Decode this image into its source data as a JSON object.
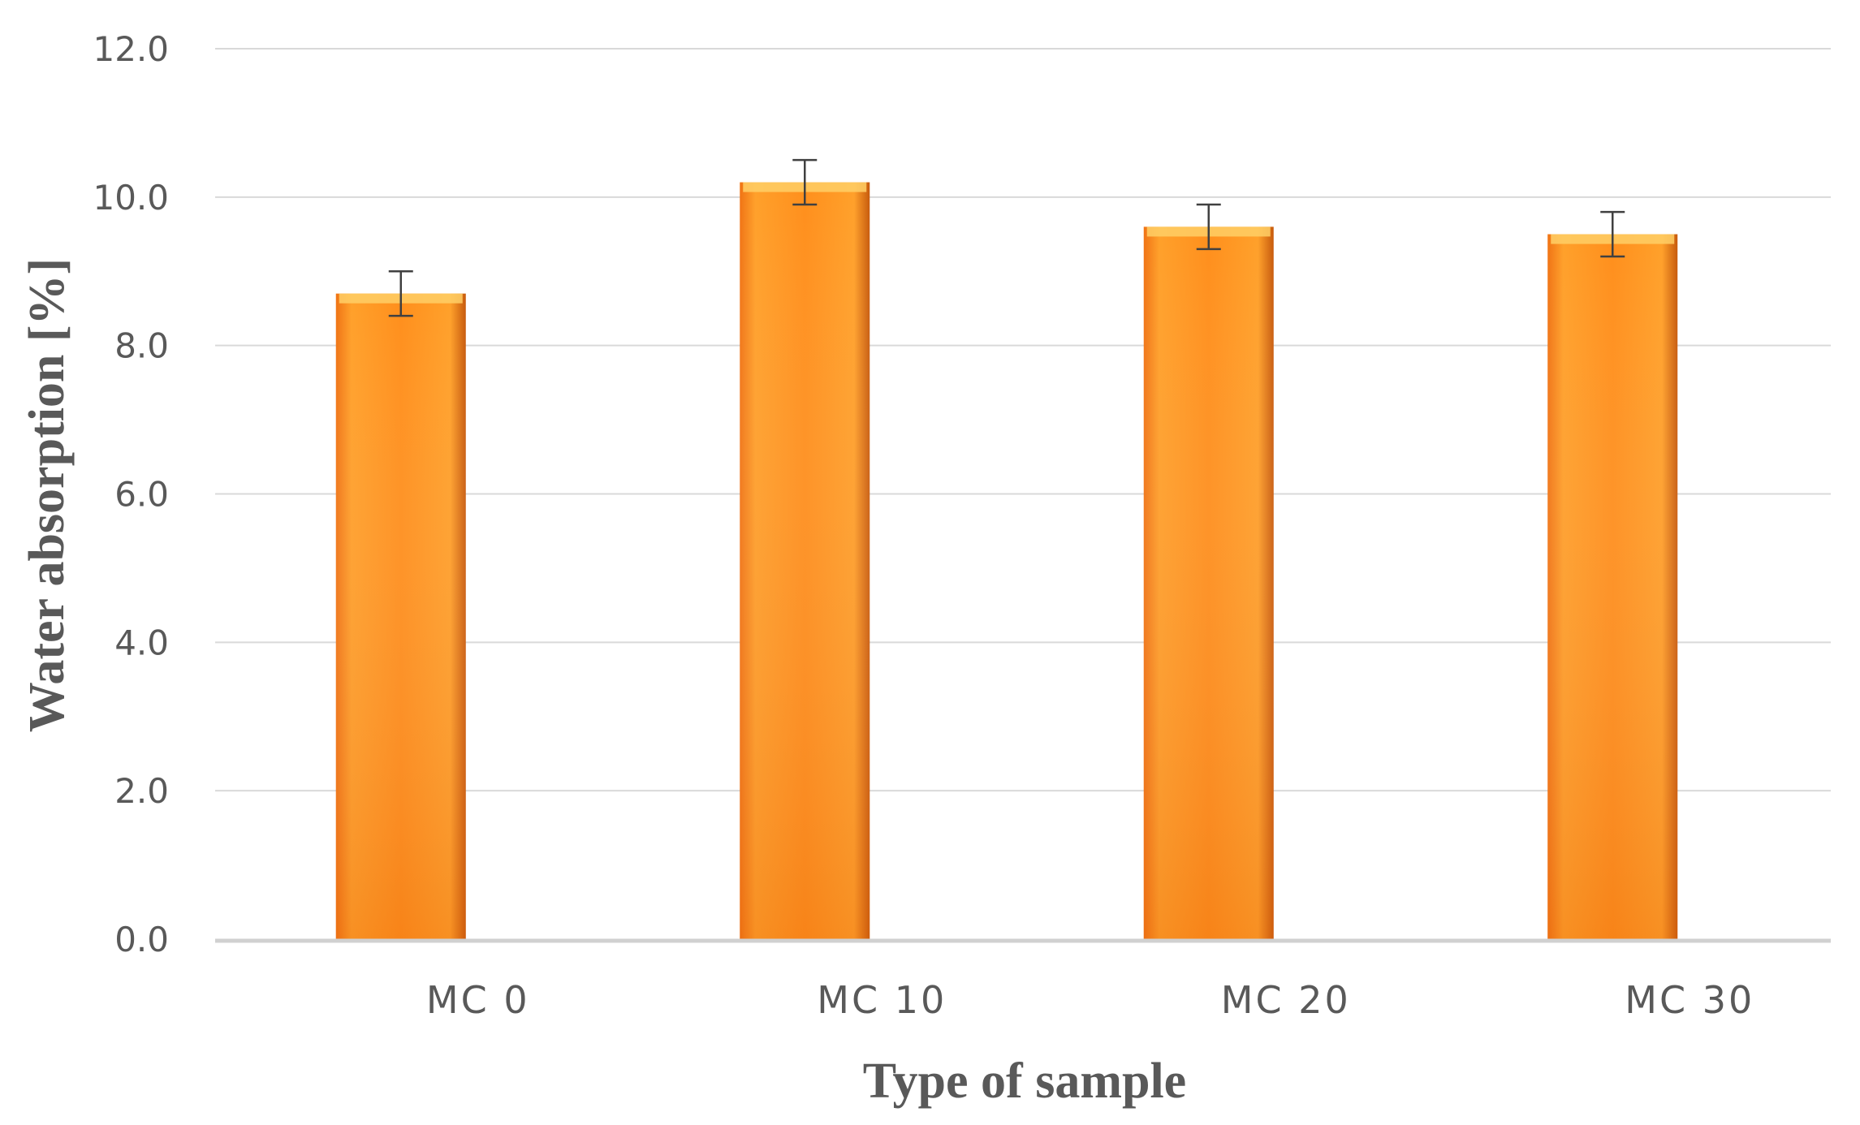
{
  "chart_data": {
    "type": "bar",
    "title": "",
    "xlabel": "Type of sample",
    "ylabel": "Water absorption [%]",
    "categories": [
      "MC 0",
      "MC 10",
      "MC 20",
      "MC 30"
    ],
    "values": [
      8.7,
      10.2,
      9.6,
      9.5
    ],
    "error": [
      0.3,
      0.3,
      0.3,
      0.3
    ],
    "ylim": [
      0.0,
      12.0
    ],
    "yticks": [
      "0.0",
      "2.0",
      "4.0",
      "6.0",
      "8.0",
      "10.0",
      "12.0"
    ],
    "grid": true,
    "legend": "none",
    "colors": {
      "bar_light": "#ffa02a",
      "bar_mid": "#ff8f1c",
      "bar_dark": "#f07314",
      "bar_edge": "#c75a0c",
      "bar_top": "#ffcf66"
    }
  }
}
